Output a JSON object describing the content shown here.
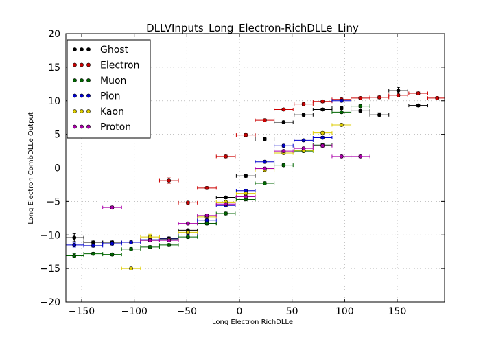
{
  "chart_data": {
    "type": "scatter",
    "title": "DLLVInputs_Long_Electron-RichDLLe_Liny",
    "xlabel": "Long Electron RichDLLe",
    "ylabel": "Long Electron CombDLLe Output",
    "xlim": [
      -165,
      195
    ],
    "ylim": [
      -20,
      20
    ],
    "xticks": [
      -150,
      -100,
      -50,
      0,
      50,
      100,
      150
    ],
    "yticks": [
      -20,
      -15,
      -10,
      -5,
      0,
      5,
      10,
      15,
      20
    ],
    "xtick_labels": [
      "−150",
      "−100",
      "−50",
      "0",
      "50",
      "100",
      "150"
    ],
    "ytick_labels": [
      "−20",
      "−15",
      "−10",
      "−5",
      "0",
      "5",
      "10",
      "15",
      "20"
    ],
    "grid": true,
    "legend_position": "top-left",
    "series": [
      {
        "name": "Ghost",
        "color": "#000000",
        "x": [
          -157,
          -139,
          -121,
          -103,
          -85,
          -67,
          -49,
          -31,
          -13,
          6,
          24,
          42,
          61,
          79,
          97,
          115,
          133,
          151,
          170
        ],
        "y": [
          -10.4,
          -11.1,
          -11.1,
          -11.1,
          -10.8,
          -10.5,
          -9.3,
          -8.3,
          -4.4,
          -1.2,
          4.3,
          6.8,
          7.9,
          8.7,
          8.9,
          8.5,
          7.9,
          11.5,
          9.3
        ],
        "yerr": [
          0.6,
          0.2,
          0.2,
          0.2,
          0.2,
          0.2,
          0.2,
          0.2,
          0.2,
          0.2,
          0.2,
          0.2,
          0.2,
          0.2,
          0.2,
          0.2,
          0.3,
          0.5,
          0.2
        ]
      },
      {
        "name": "Electron",
        "color": "#cc0000",
        "x": [
          -67,
          -49,
          -31,
          -13,
          6,
          24,
          42,
          61,
          79,
          97,
          115,
          133,
          151,
          170,
          188
        ],
        "y": [
          -1.9,
          -5.2,
          -3.0,
          1.7,
          4.9,
          7.1,
          8.7,
          9.5,
          9.9,
          10.2,
          10.4,
          10.5,
          10.8,
          11.1,
          10.4
        ],
        "yerr": [
          0.4,
          0.2,
          0.2,
          0.2,
          0.2,
          0.2,
          0.2,
          0.2,
          0.2,
          0.2,
          0.2,
          0.2,
          0.2,
          0.2,
          0.2
        ]
      },
      {
        "name": "Muon",
        "color": "#006600",
        "x": [
          -157,
          -139,
          -121,
          -103,
          -85,
          -67,
          -49,
          -31,
          -13,
          6,
          24,
          42,
          61,
          79,
          97,
          115
        ],
        "y": [
          -13.1,
          -12.8,
          -12.9,
          -12.1,
          -11.8,
          -11.5,
          -10.3,
          -8.3,
          -6.8,
          -4.7,
          -2.3,
          0.4,
          2.5,
          3.4,
          8.3,
          9.2
        ],
        "yerr": [
          0.3,
          0.2,
          0.2,
          0.2,
          0.2,
          0.2,
          0.2,
          0.2,
          0.2,
          0.2,
          0.2,
          0.2,
          0.2,
          0.2,
          0.2,
          0.2
        ]
      },
      {
        "name": "Pion",
        "color": "#0000cc",
        "x": [
          -157,
          -139,
          -121,
          -103,
          -85,
          -67,
          -49,
          -31,
          -13,
          6,
          24,
          42,
          61,
          79,
          97
        ],
        "y": [
          -11.5,
          -11.6,
          -11.3,
          -11.1,
          -10.7,
          -10.6,
          -9.7,
          -7.8,
          -5.6,
          -3.4,
          0.9,
          3.3,
          4.1,
          4.5,
          10.0
        ],
        "yerr": [
          0.3,
          0.2,
          0.2,
          0.2,
          0.2,
          0.2,
          0.2,
          0.2,
          0.2,
          0.2,
          0.2,
          0.2,
          0.2,
          0.2,
          0.2
        ]
      },
      {
        "name": "Kaon",
        "color": "#ddcc00",
        "x": [
          -103,
          -85,
          -67,
          -49,
          -31,
          -13,
          6,
          24,
          42,
          61,
          79,
          97
        ],
        "y": [
          -15.0,
          -10.3,
          -10.7,
          -9.6,
          -7.3,
          -5.1,
          -3.8,
          -0.3,
          2.2,
          2.6,
          5.2,
          6.4
        ],
        "yerr": [
          0.2,
          0.4,
          0.2,
          0.2,
          0.2,
          0.2,
          0.2,
          0.2,
          0.2,
          0.2,
          0.2,
          0.2
        ]
      },
      {
        "name": "Proton",
        "color": "#aa00aa",
        "x": [
          -121,
          -85,
          -67,
          -49,
          -31,
          -13,
          6,
          24,
          42,
          61,
          79,
          97,
          115
        ],
        "y": [
          -5.9,
          -10.8,
          -10.8,
          -8.3,
          -7.1,
          -5.4,
          -4.3,
          -0.1,
          2.5,
          2.9,
          3.3,
          1.7,
          1.7
        ],
        "yerr": [
          0.2,
          0.2,
          0.2,
          0.2,
          0.2,
          0.2,
          0.2,
          0.2,
          0.2,
          0.2,
          0.2,
          0.2,
          0.2
        ]
      }
    ],
    "xerr_halfwidth": 9
  }
}
